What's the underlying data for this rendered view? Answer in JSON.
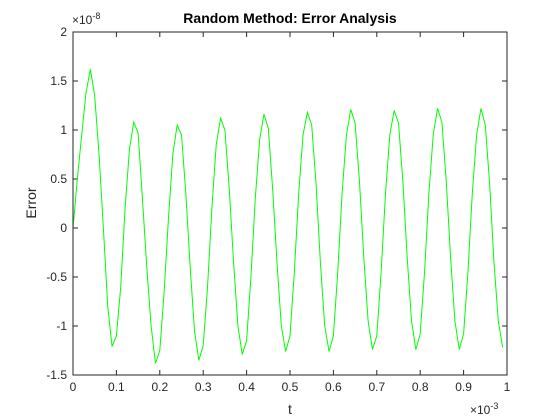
{
  "chart_data": {
    "type": "line",
    "title": "Random Method: Error Analysis",
    "xlabel": "t",
    "ylabel": "Error",
    "xlim": [
      0,
      1
    ],
    "ylim": [
      -1.5,
      2
    ],
    "x_multiplier": "×10",
    "x_exponent": "-3",
    "y_multiplier": "×10",
    "y_exponent": "-8",
    "x_ticks": [
      "0",
      "0.1",
      "0.2",
      "0.3",
      "0.4",
      "0.5",
      "0.6",
      "0.7",
      "0.8",
      "0.9",
      "1"
    ],
    "y_ticks": [
      "-1.5",
      "-1",
      "-0.5",
      "0",
      "0.5",
      "1",
      "1.5",
      "2"
    ],
    "grid": false,
    "line_color": "#00ff00",
    "series": [
      {
        "x": [
          0,
          0.01,
          0.02,
          0.03,
          0.04,
          0.05,
          0.06,
          0.07,
          0.08,
          0.09,
          0.1,
          0.11,
          0.12,
          0.13,
          0.14,
          0.15,
          0.16,
          0.17,
          0.18,
          0.19,
          0.2,
          0.21,
          0.22,
          0.23,
          0.24,
          0.25,
          0.26,
          0.27,
          0.28,
          0.29,
          0.3,
          0.31,
          0.32,
          0.33,
          0.34,
          0.35,
          0.36,
          0.37,
          0.38,
          0.39,
          0.4,
          0.41,
          0.42,
          0.43,
          0.44,
          0.45,
          0.46,
          0.47,
          0.48,
          0.49,
          0.5,
          0.51,
          0.52,
          0.53,
          0.54,
          0.55,
          0.56,
          0.57,
          0.58,
          0.59,
          0.6,
          0.61,
          0.62,
          0.63,
          0.64,
          0.65,
          0.66,
          0.67,
          0.68,
          0.69,
          0.7,
          0.71,
          0.72,
          0.73,
          0.74,
          0.75,
          0.76,
          0.77,
          0.78,
          0.79,
          0.8,
          0.81,
          0.82,
          0.83,
          0.84,
          0.85,
          0.86,
          0.87,
          0.88,
          0.89,
          0.9,
          0.91,
          0.92,
          0.93,
          0.94,
          0.95,
          0.96,
          0.97,
          0.98,
          0.99
        ],
        "y": [
          0,
          0.5,
          0.95,
          1.38,
          1.62,
          1.35,
          0.75,
          0,
          -0.8,
          -1.21,
          -1.1,
          -0.6,
          0.2,
          0.8,
          1.08,
          0.97,
          0.3,
          -0.4,
          -1.0,
          -1.38,
          -1.25,
          -0.65,
          0.1,
          0.75,
          1.05,
          0.95,
          0.35,
          -0.4,
          -1.05,
          -1.35,
          -1.2,
          -0.6,
          0.2,
          0.85,
          1.12,
          1.0,
          0.4,
          -0.35,
          -1.0,
          -1.29,
          -1.15,
          -0.5,
          0.3,
          0.9,
          1.16,
          1.02,
          0.4,
          -0.35,
          -1.0,
          -1.26,
          -1.1,
          -0.45,
          0.35,
          0.95,
          1.18,
          1.05,
          0.45,
          -0.35,
          -1.0,
          -1.26,
          -1.1,
          -0.45,
          0.35,
          0.95,
          1.21,
          1.07,
          0.48,
          -0.3,
          -0.95,
          -1.24,
          -1.1,
          -0.45,
          0.35,
          0.95,
          1.2,
          1.07,
          0.48,
          -0.3,
          -0.95,
          -1.24,
          -1.08,
          -0.45,
          0.35,
          0.95,
          1.22,
          1.08,
          0.48,
          -0.3,
          -0.95,
          -1.24,
          -1.08,
          -0.45,
          0.35,
          0.95,
          1.22,
          1.05,
          0.45,
          -0.35,
          -0.95,
          -1.22
        ]
      }
    ]
  }
}
